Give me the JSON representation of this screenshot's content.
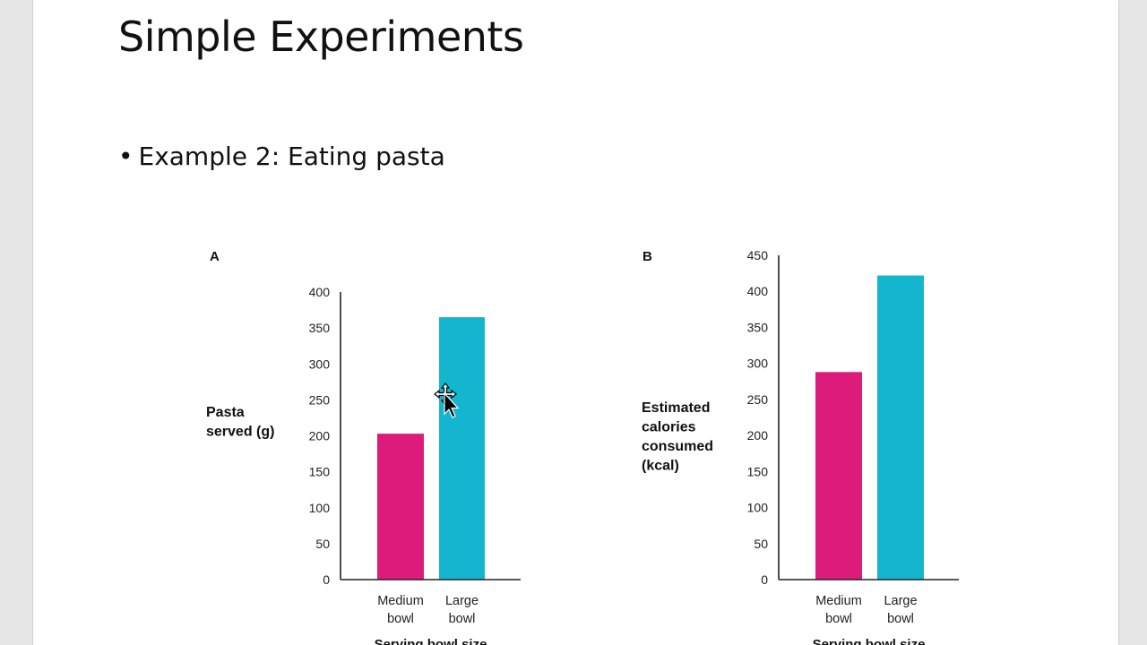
{
  "slide": {
    "title": "Simple Experiments",
    "bullet": "Example 2: Eating pasta"
  },
  "colors": {
    "medium": "#dd1b7a",
    "large": "#14b6cf",
    "axis": "#222222"
  },
  "chart_data": [
    {
      "type": "bar",
      "panel_label": "A",
      "categories": [
        [
          "Medium",
          "bowl"
        ],
        [
          "Large",
          "bowl"
        ]
      ],
      "values": [
        203,
        365
      ],
      "ylabel": [
        "Pasta",
        "served (g)"
      ],
      "xlabel": "Serving bowl size",
      "yticks": [
        0,
        50,
        100,
        150,
        200,
        250,
        300,
        350,
        400
      ],
      "ylim": [
        0,
        400
      ],
      "grid": false
    },
    {
      "type": "bar",
      "panel_label": "B",
      "categories": [
        [
          "Medium",
          "bowl"
        ],
        [
          "Large",
          "bowl"
        ]
      ],
      "values": [
        288,
        422
      ],
      "ylabel": [
        "Estimated",
        "calories",
        "consumed",
        "(kcal)"
      ],
      "xlabel": "Serving bowl size",
      "yticks": [
        0,
        50,
        100,
        150,
        200,
        250,
        300,
        350,
        400,
        450
      ],
      "ylim": [
        0,
        450
      ],
      "grid": false
    }
  ]
}
